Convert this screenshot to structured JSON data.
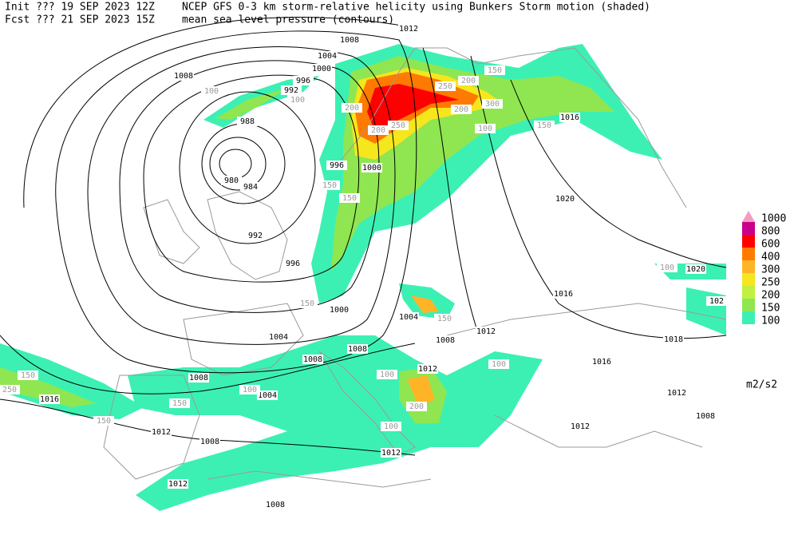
{
  "header": {
    "init": "Init  ??? 19 SEP 2023 12Z",
    "fcst": "Fcst ??? 21 SEP 2023 15Z",
    "title": "NCEP GFS 0-3 km storm-relative helicity using Bunkers Storm motion (shaded)",
    "subtitle": "mean sea level pressure (contours)"
  },
  "legend": {
    "levels": [
      1000,
      800,
      600,
      400,
      300,
      250,
      200,
      150,
      100
    ],
    "colors": [
      "#f79ac0",
      "#c8008c",
      "#ff0000",
      "#ff7a00",
      "#ffb428",
      "#f5e61e",
      "#c0f040",
      "#8fe650",
      "#3cf0b4"
    ],
    "unit": "m2/s2"
  },
  "contour_labels": [
    1012,
    1008,
    1004,
    1000,
    996,
    992,
    988,
    984,
    980,
    992,
    996,
    1000,
    1004,
    1008,
    1008,
    1004,
    1008,
    1016,
    1012,
    1008,
    1012,
    1008,
    1012,
    1012,
    1008,
    1012,
    1004,
    1016,
    1016,
    1018,
    1020,
    1020,
    1016,
    1012,
    1008,
    1012,
    1008,
    996,
    1000,
    1004,
    102
  ],
  "shade_labels": [
    100,
    100,
    200,
    250,
    200,
    150,
    200,
    300,
    150,
    100,
    250,
    200,
    150,
    150,
    100,
    150,
    250,
    150,
    150,
    100,
    100,
    200,
    100,
    100,
    150,
    150
  ]
}
